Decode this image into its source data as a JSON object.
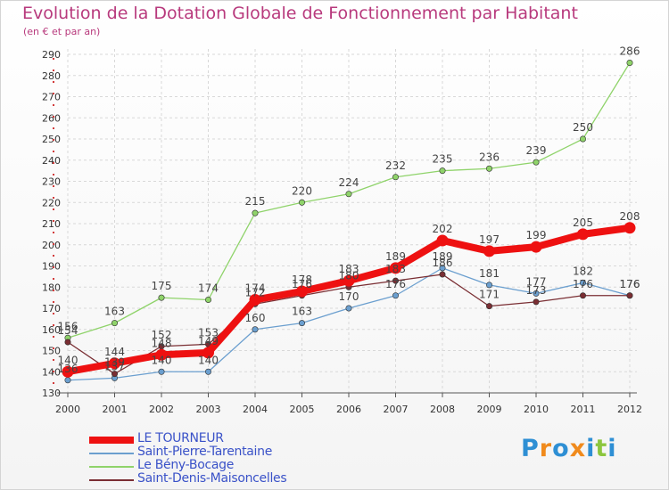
{
  "title": "Evolution de la Dotation Globale de Fonctionnement par Habitant",
  "subtitle": "(en € et par an)",
  "logo": {
    "letters": [
      "P",
      "r",
      "o",
      "x",
      "i",
      "t",
      "i"
    ],
    "colors": [
      "#2e8fd4",
      "#f08a1c",
      "#2e8fd4",
      "#f08a1c",
      "#2e8fd4",
      "#8cc63e",
      "#2e8fd4"
    ]
  },
  "chart_data": {
    "type": "line",
    "title": "Evolution de la Dotation Globale de Fonctionnement par Habitant",
    "subtitle": "(en € et par an)",
    "x": [
      "2000",
      "2001",
      "2002",
      "2003",
      "2004",
      "2005",
      "2006",
      "2007",
      "2008",
      "2009",
      "2010",
      "2011",
      "2012"
    ],
    "ylim": [
      130,
      290
    ],
    "yticks": [
      130,
      140,
      150,
      160,
      170,
      180,
      190,
      200,
      210,
      220,
      230,
      240,
      250,
      260,
      270,
      280,
      290
    ],
    "grid": true,
    "legend_position": "bottom-left",
    "series": [
      {
        "name": "Saint-Pierre-Tarentaine",
        "color": "#6b9fcf",
        "values": [
          136,
          137,
          140,
          140,
          160,
          163,
          170,
          176,
          189,
          181,
          177,
          182,
          176
        ],
        "labels": [
          "136",
          "137",
          "140",
          "140",
          "160",
          "163",
          "170",
          "176",
          "189",
          "181",
          "177",
          "182",
          "176"
        ]
      },
      {
        "name": "Le Bény-Bocage",
        "color": "#8fd36a",
        "values": [
          156,
          163,
          175,
          174,
          215,
          220,
          224,
          232,
          235,
          236,
          239,
          250,
          286
        ],
        "labels": [
          "156",
          "163",
          "175",
          "174",
          "215",
          "220",
          "224",
          "232",
          "235",
          "236",
          "239",
          "250",
          "286"
        ]
      },
      {
        "name": "Saint-Denis-Maisoncelles",
        "color": "#7a2e33",
        "values": [
          154,
          139,
          152,
          153,
          172,
          176,
          180,
          183,
          186,
          171,
          173,
          176,
          176
        ],
        "labels": [
          "154",
          "139",
          "152",
          "153",
          "172",
          "176",
          "180",
          "183",
          "186",
          "171",
          "173",
          "176",
          "176"
        ]
      },
      {
        "name": "LE TOURNEUR",
        "color": "#ee1111",
        "values": [
          140,
          144,
          148,
          149,
          174,
          178,
          183,
          189,
          202,
          197,
          199,
          205,
          208
        ],
        "labels": [
          "140",
          "144",
          "148",
          "149",
          "174",
          "178",
          "183",
          "189",
          "202",
          "197",
          "199",
          "205",
          "208"
        ]
      }
    ],
    "legend_order": [
      "LE TOURNEUR",
      "Saint-Pierre-Tarentaine",
      "Le Bény-Bocage",
      "Saint-Denis-Maisoncelles"
    ]
  }
}
